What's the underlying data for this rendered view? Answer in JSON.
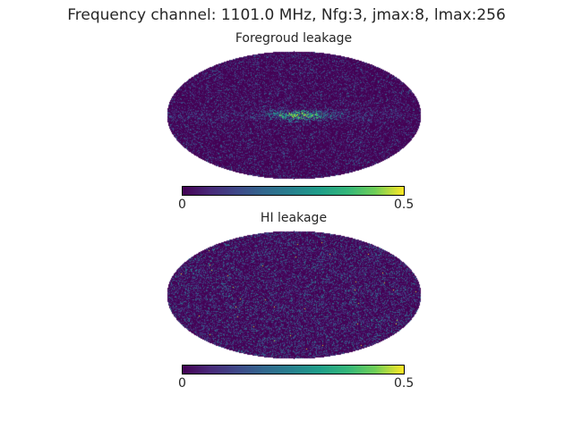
{
  "figure": {
    "suptitle": "Frequency channel: 1101.0 MHz, Nfg:3, jmax:8, lmax:256"
  },
  "panels": [
    {
      "title": "Foregroud leakage",
      "colorbar": {
        "min_label": "0",
        "max_label": "0.5",
        "cmap": "viridis"
      }
    },
    {
      "title": "HI leakage",
      "colorbar": {
        "min_label": "0",
        "max_label": "0.5",
        "cmap": "viridis"
      }
    }
  ],
  "colors": {
    "background": "#440154",
    "mid": "#21918c",
    "high": "#fde725"
  }
}
